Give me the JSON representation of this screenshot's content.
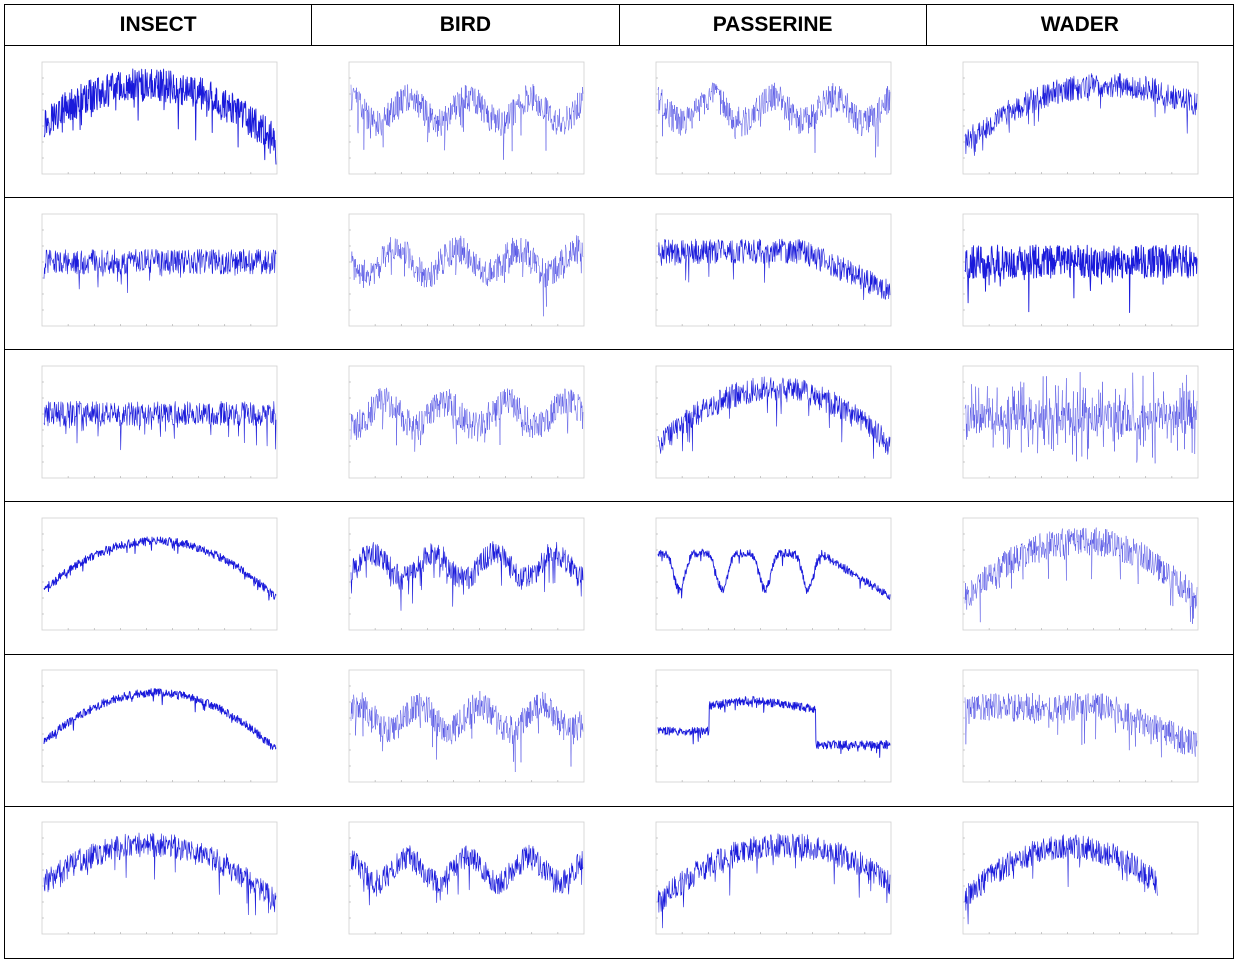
{
  "header": {
    "columns": [
      "INSECT",
      "BIRD",
      "PASSERINE",
      "WADER"
    ]
  },
  "colors": {
    "signal": "#1a1adb",
    "frame": "#cfcfcf",
    "tick_text": "#9a9a9a"
  },
  "chart_data": {
    "type": "line",
    "title": "",
    "xlabel": "",
    "ylabel": "",
    "layout_grid": {
      "rows": 6,
      "columns": 4
    },
    "panels": [
      {
        "row": 1,
        "column": "INSECT",
        "shape": "arch",
        "peak_at": 0.45,
        "density": "dense"
      },
      {
        "row": 1,
        "column": "BIRD",
        "shape": "flat-oscillating",
        "density": "sparse"
      },
      {
        "row": 1,
        "column": "PASSERINE",
        "shape": "flat-oscillating",
        "density": "sparse"
      },
      {
        "row": 1,
        "column": "WADER",
        "shape": "arch",
        "peak_at": 0.62,
        "density": "medium"
      },
      {
        "row": 2,
        "column": "INSECT",
        "shape": "flat",
        "density": "medium"
      },
      {
        "row": 2,
        "column": "BIRD",
        "shape": "flat-oscillating",
        "density": "sparse"
      },
      {
        "row": 2,
        "column": "PASSERINE",
        "shape": "plateau-then-drop",
        "density": "medium"
      },
      {
        "row": 2,
        "column": "WADER",
        "shape": "flat",
        "density": "dense"
      },
      {
        "row": 3,
        "column": "INSECT",
        "shape": "flat",
        "density": "medium"
      },
      {
        "row": 3,
        "column": "BIRD",
        "shape": "flat-oscillating",
        "density": "sparse"
      },
      {
        "row": 3,
        "column": "PASSERINE",
        "shape": "arch",
        "peak_at": 0.5,
        "density": "medium"
      },
      {
        "row": 3,
        "column": "WADER",
        "shape": "flat-spiky",
        "density": "sparse"
      },
      {
        "row": 4,
        "column": "INSECT",
        "shape": "arch",
        "peak_at": 0.48,
        "density": "thin"
      },
      {
        "row": 4,
        "column": "BIRD",
        "shape": "flat-oscillating",
        "density": "medium"
      },
      {
        "row": 4,
        "column": "PASSERINE",
        "shape": "dips-then-drop",
        "density": "thin"
      },
      {
        "row": 4,
        "column": "WADER",
        "shape": "arch",
        "peak_at": 0.5,
        "density": "sparse"
      },
      {
        "row": 5,
        "column": "INSECT",
        "shape": "arch",
        "peak_at": 0.48,
        "density": "thin"
      },
      {
        "row": 5,
        "column": "BIRD",
        "shape": "flat-oscillating",
        "density": "sparse"
      },
      {
        "row": 5,
        "column": "PASSERINE",
        "shape": "bump-then-low",
        "density": "thin"
      },
      {
        "row": 5,
        "column": "WADER",
        "shape": "plateau-then-drop",
        "density": "sparse"
      },
      {
        "row": 6,
        "column": "INSECT",
        "shape": "arch",
        "peak_at": 0.45,
        "density": "medium"
      },
      {
        "row": 6,
        "column": "BIRD",
        "shape": "flat-oscillating",
        "density": "medium"
      },
      {
        "row": 6,
        "column": "PASSERINE",
        "shape": "arch",
        "peak_at": 0.55,
        "density": "medium"
      },
      {
        "row": 6,
        "column": "WADER",
        "shape": "arch-short",
        "peak_at": 0.45,
        "density": "medium"
      }
    ]
  }
}
